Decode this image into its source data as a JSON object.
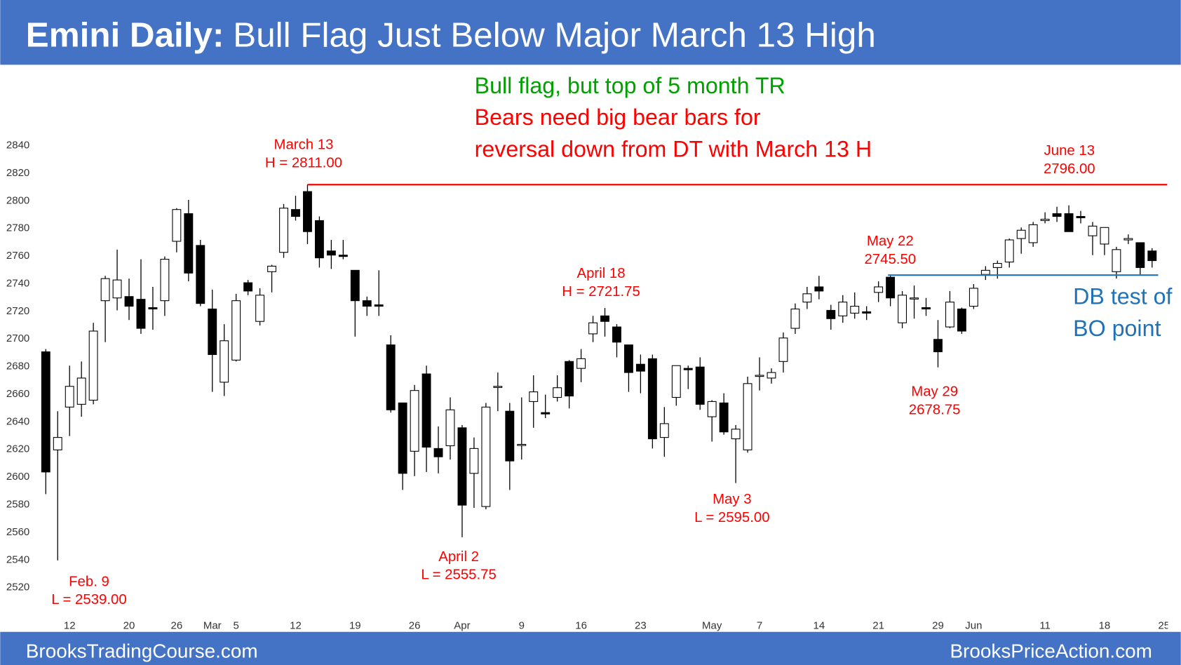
{
  "header": {
    "title_bold": "Emini Daily:",
    "title": "Bull Flag Just Below Major March 13 High"
  },
  "footer": {
    "left": "BrooksTradingCourse.com",
    "right": "BrooksPriceAction.com"
  },
  "chart_data": {
    "type": "candlestick",
    "up_color": "#ffffff",
    "down_color": "#000000",
    "ylim": [
      2510,
      2846
    ],
    "yticks": [
      2520,
      2540,
      2560,
      2580,
      2600,
      2620,
      2640,
      2660,
      2680,
      2700,
      2720,
      2740,
      2760,
      2780,
      2800,
      2820,
      2840
    ],
    "xlim": [
      -1.3,
      94.4
    ],
    "xticks": [
      {
        "value": 2,
        "label": "12"
      },
      {
        "value": 7,
        "label": "20"
      },
      {
        "value": 11,
        "label": "26"
      },
      {
        "value": 14,
        "label": "Mar"
      },
      {
        "value": 16,
        "label": "5"
      },
      {
        "value": 21,
        "label": "12"
      },
      {
        "value": 26,
        "label": "19"
      },
      {
        "value": 31,
        "label": "26"
      },
      {
        "value": 35,
        "label": "Apr"
      },
      {
        "value": 40,
        "label": "9"
      },
      {
        "value": 45,
        "label": "16"
      },
      {
        "value": 50,
        "label": "23"
      },
      {
        "value": 56,
        "label": "May"
      },
      {
        "value": 60,
        "label": "7"
      },
      {
        "value": 65,
        "label": "14"
      },
      {
        "value": 70,
        "label": "21"
      },
      {
        "value": 75,
        "label": "29"
      },
      {
        "value": 78,
        "label": "Jun"
      },
      {
        "value": 84,
        "label": "11"
      },
      {
        "value": 89,
        "label": "18"
      },
      {
        "value": 94,
        "label": "25"
      }
    ],
    "open": [
      2690,
      2619,
      2650,
      2652,
      2655,
      2727,
      2729,
      2730,
      2728,
      2722,
      2727,
      2770,
      2790,
      2767,
      2721,
      2668,
      2684,
      2740,
      2712,
      2748,
      2762,
      2793,
      2806,
      2785,
      2763,
      2760,
      2749,
      2727,
      2724,
      2695,
      2653,
      2618,
      2674,
      2620,
      2622,
      2635,
      2602,
      2578,
      2665,
      2647,
      2623,
      2654,
      2646,
      2657,
      2683,
      2678,
      2703,
      2716,
      2708,
      2695,
      2681,
      2685,
      2628,
      2657,
      2678,
      2679,
      2643,
      2653,
      2627,
      2619,
      2673,
      2671,
      2683,
      2707,
      2726,
      2737,
      2720,
      2716,
      2718,
      2719,
      2733,
      2744,
      2711,
      2729,
      2722,
      2699,
      2708,
      2721,
      2723,
      2746,
      2751,
      2755,
      2772,
      2769,
      2785,
      2790,
      2790,
      2788,
      2774,
      2768,
      2748,
      2771,
      2769,
      2763
    ],
    "high": [
      2692,
      2647,
      2680,
      2683,
      2711,
      2745,
      2764,
      2743,
      2757,
      2737,
      2759,
      2794,
      2800,
      2771,
      2735,
      2710,
      2732,
      2742,
      2736,
      2753,
      2797,
      2803,
      2811,
      2788,
      2771,
      2771,
      2749,
      2730,
      2749,
      2702,
      2653,
      2666,
      2680,
      2636,
      2657,
      2637,
      2628,
      2653,
      2675,
      2653,
      2657,
      2673,
      2659,
      2673,
      2684,
      2692,
      2716,
      2721.75,
      2710,
      2695,
      2688,
      2688,
      2650,
      2680,
      2680,
      2686,
      2655,
      2660,
      2637,
      2672,
      2686,
      2678,
      2704,
      2725,
      2737,
      2745,
      2724,
      2731,
      2733,
      2723,
      2741,
      2745.5,
      2734,
      2738,
      2729,
      2713,
      2734,
      2722,
      2739,
      2752,
      2756,
      2772,
      2780,
      2784,
      2791,
      2795,
      2796,
      2792,
      2784,
      2780,
      2766,
      2775,
      2769,
      2765
    ],
    "low": [
      2587,
      2539,
      2629,
      2643,
      2652,
      2697,
      2720,
      2713,
      2703,
      2706,
      2716,
      2762,
      2741,
      2723,
      2661,
      2658,
      2683,
      2731,
      2709,
      2733,
      2758,
      2785,
      2768,
      2751,
      2750,
      2757,
      2701,
      2716,
      2716,
      2646,
      2590,
      2600,
      2603,
      2602,
      2612,
      2555.75,
      2577,
      2576,
      2647,
      2590,
      2612,
      2635,
      2642,
      2654,
      2649,
      2668,
      2697,
      2701,
      2686,
      2661,
      2660,
      2620,
      2614,
      2651,
      2663,
      2648,
      2625,
      2630,
      2595,
      2617,
      2662,
      2667,
      2675,
      2703,
      2721,
      2728,
      2706,
      2711,
      2714,
      2713,
      2726,
      2723,
      2707,
      2714,
      2716,
      2678.75,
      2707,
      2703,
      2721,
      2742,
      2743,
      2751,
      2761,
      2766,
      2783,
      2784,
      2777,
      2783,
      2760,
      2760,
      2743,
      2768,
      2746,
      2751
    ],
    "close": [
      2603,
      2628,
      2665,
      2671,
      2705,
      2743,
      2742,
      2723,
      2707,
      2721,
      2757,
      2793,
      2747,
      2725,
      2688,
      2698,
      2727,
      2734,
      2731,
      2752,
      2794,
      2788,
      2777,
      2758,
      2760,
      2759,
      2727,
      2723,
      2723,
      2648,
      2602,
      2662,
      2621,
      2614,
      2648,
      2579,
      2620,
      2650,
      2665,
      2611,
      2623,
      2661,
      2645,
      2664,
      2658,
      2685,
      2711,
      2712,
      2697,
      2675,
      2676,
      2627,
      2638,
      2680,
      2677,
      2652,
      2654,
      2632,
      2634,
      2667,
      2673,
      2675,
      2700,
      2721,
      2732,
      2734,
      2714,
      2726,
      2723,
      2718,
      2737,
      2729,
      2731,
      2729,
      2721,
      2690,
      2726,
      2705,
      2736,
      2749,
      2754,
      2771,
      2778,
      2782,
      2786,
      2788,
      2777,
      2787,
      2781,
      2780,
      2764,
      2772,
      2751,
      2756
    ],
    "level_colors": [
      "#ff0000",
      "#1f72b8"
    ],
    "annotations": [
      {
        "lines": [
          "Bull flag, but top of 5 month TR"
        ],
        "color": "#00a000"
      },
      {
        "lines": [
          "Bears need big bear bars for",
          "reversal down from DT with March 13 H"
        ],
        "color": "#ff0000"
      },
      {
        "lines": [
          "DB test of",
          "BO point"
        ],
        "color": "#1f72b8"
      },
      {
        "lines": [
          "Feb. 9",
          "L = 2539.00"
        ],
        "color": "#ff0000"
      },
      {
        "lines": [
          "March 13",
          "H = 2811.00"
        ],
        "color": "#ff0000"
      },
      {
        "lines": [
          "April 2",
          "L = 2555.75"
        ],
        "color": "#ff0000"
      },
      {
        "lines": [
          "April 18",
          "H = 2721.75"
        ],
        "color": "#ff0000"
      },
      {
        "lines": [
          "May 3",
          "L = 2595.00"
        ],
        "color": "#ff0000"
      },
      {
        "lines": [
          "May 22",
          "2745.50"
        ],
        "color": "#ff0000"
      },
      {
        "lines": [
          "May 29",
          "2678.75"
        ],
        "color": "#ff0000"
      },
      {
        "lines": [
          "June 13",
          "2796.00"
        ],
        "color": "#ff0000"
      }
    ]
  }
}
